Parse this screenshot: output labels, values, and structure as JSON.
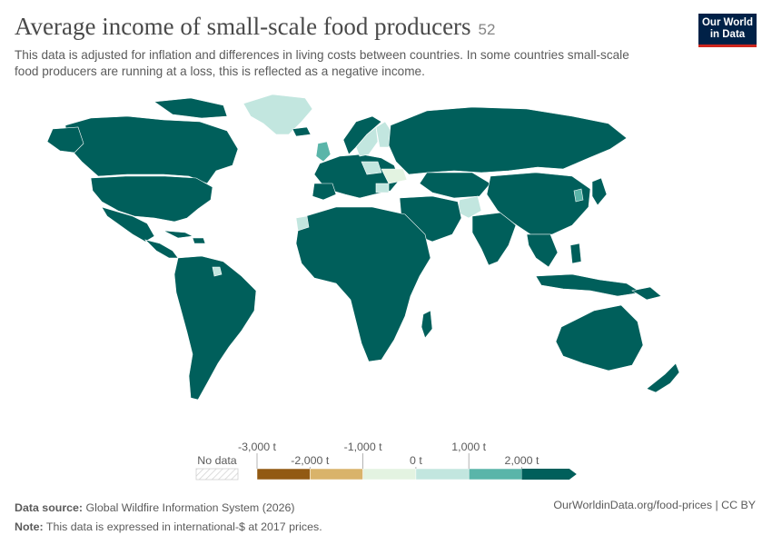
{
  "header": {
    "title": "Average income of small-scale food producers",
    "title_badge": "52",
    "subtitle_line1": "This data is adjusted for inflation and differences in living costs between countries. In some countries small-scale",
    "subtitle_line2": "food producers are running at a loss, this is reflected as a negative income."
  },
  "logo": {
    "line1": "Our World",
    "line2": "in Data"
  },
  "legend": {
    "no_data_label": "No data",
    "tick_labels": [
      "-3,000 t",
      "-2,000 t",
      "-1,000 t",
      "0 t",
      "1,000 t",
      "2,000 t"
    ],
    "bins": [
      {
        "from": -3000,
        "to": -2000,
        "color": "#925a13"
      },
      {
        "from": -2000,
        "to": -1000,
        "color": "#d9b36a"
      },
      {
        "from": -1000,
        "to": 0,
        "color": "#e3f3e1"
      },
      {
        "from": 0,
        "to": 1000,
        "color": "#c2e6df"
      },
      {
        "from": 1000,
        "to": 2000,
        "color": "#5ab5a9"
      },
      {
        "from": 2000,
        "to": null,
        "color": "#005f5b"
      }
    ]
  },
  "colors": {
    "high": "#005f5b",
    "mid": "#5ab5a9",
    "low": "#c2e6df",
    "lowest": "#e3f3e1"
  },
  "footer": {
    "source_label": "Data source:",
    "source_text": "Global Wildfire Information System (2026)",
    "note_label": "Note:",
    "note_text": "This data is expressed in international-$ at 2017 prices.",
    "url_text": "OurWorldinData.org/food-prices | CC BY"
  }
}
